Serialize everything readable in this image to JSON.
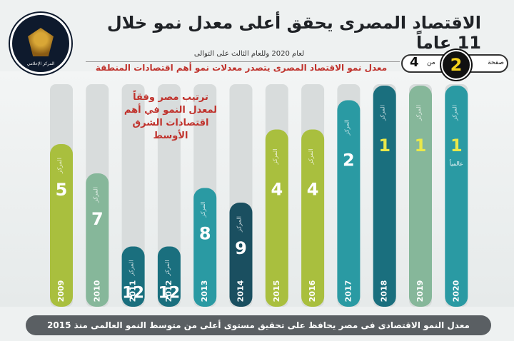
{
  "header": {
    "headline": "الاقتصاد المصرى يحقق أعلى معدل نمو خلال 11 عاماً",
    "subline": "لعام 2020 وللعام الثالث على التوالى",
    "subtitle": "معدل نمو الاقتصاد المصرى يتصدر معدلات نمو أهم اقتصادات المنطقة"
  },
  "logo": {
    "text": "المركز الإعلامي"
  },
  "page_indicator": {
    "label": "صفحة",
    "current": "2",
    "of_label": "من",
    "total": "4"
  },
  "note": "ترتيب مصر وفقاً\nلمعدل النمو في أهم\nاقتصادات الشرق\nالأوسط",
  "footer": "معدل النمو الاقتصادى فى مصر يحافظ على تحقيق مستوى أعلى من متوسط النمو العالمى منذ 2015",
  "chart_data": {
    "type": "bar",
    "title": "ترتيب مصر وفقاً لمعدل النمو في أهم اقتصادات الشرق الأوسط",
    "categories": [
      "2009",
      "2010",
      "2011",
      "2012",
      "2013",
      "2014",
      "2015",
      "2016",
      "2017",
      "2018",
      "2019",
      "2020"
    ],
    "values": [
      5,
      7,
      12,
      12,
      8,
      9,
      4,
      4,
      2,
      1,
      1,
      1
    ],
    "value_prefix_label": "المركز",
    "extra_label_2020": "عالمياً",
    "colors": [
      "#a9bf3e",
      "#86b79a",
      "#1a6f7e",
      "#1a6f7e",
      "#2a9aa3",
      "#1a4f60",
      "#a9bf3e",
      "#a9bf3e",
      "#2a9aa3",
      "#1a6f7e",
      "#86b79a",
      "#2a9aa3"
    ],
    "rank_axis": "lower rank = taller bar"
  }
}
